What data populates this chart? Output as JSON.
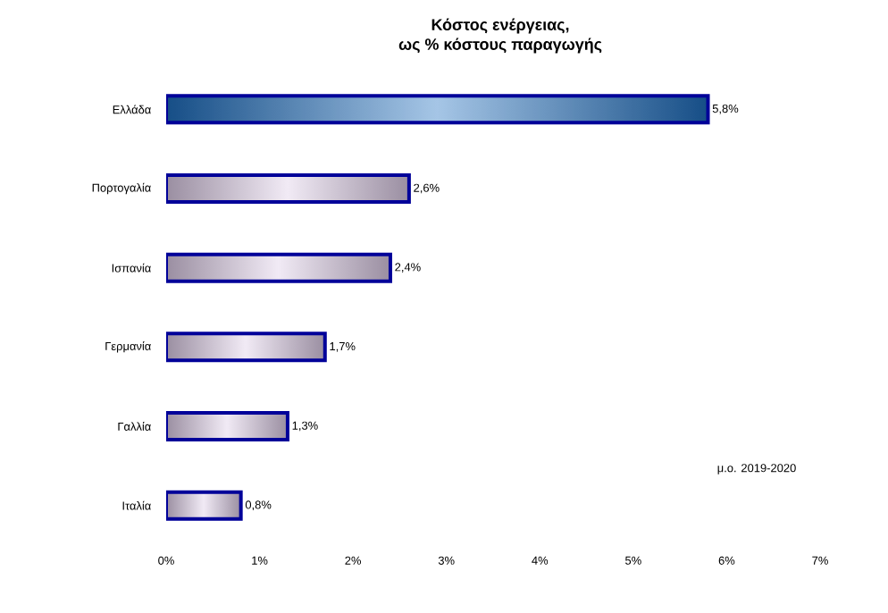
{
  "chart_data": {
    "type": "bar",
    "orientation": "horizontal",
    "title": "Κόστος ενέργειας,",
    "subtitle": "ως % κόστους παραγωγής",
    "categories": [
      "Ελλάδα",
      "Πορτογαλία",
      "Ισπανία",
      "Γερμανία",
      "Γαλλία",
      "Ιταλία"
    ],
    "values": [
      5.8,
      2.6,
      2.4,
      1.7,
      1.3,
      0.8
    ],
    "value_labels": [
      "5,8%",
      "2,6%",
      "2,4%",
      "1,7%",
      "1,3%",
      "0,8%"
    ],
    "colors": [
      "#1f6fc0",
      "#dccbe6",
      "#dccbe6",
      "#dccbe6",
      "#dccbe6",
      "#dccbe6"
    ],
    "xlim": [
      0,
      7
    ],
    "xticks": [
      {
        "value": 0,
        "label": "0%"
      },
      {
        "value": 1,
        "label": "1%"
      },
      {
        "value": 2,
        "label": "2%"
      },
      {
        "value": 3,
        "label": "3%"
      },
      {
        "value": 4,
        "label": "4%"
      },
      {
        "value": 5,
        "label": "5%"
      },
      {
        "value": 6,
        "label": "6%"
      },
      {
        "value": 7,
        "label": "7%"
      }
    ],
    "annotations": [
      "μ.ο. 2019-2020"
    ],
    "grid": false
  }
}
